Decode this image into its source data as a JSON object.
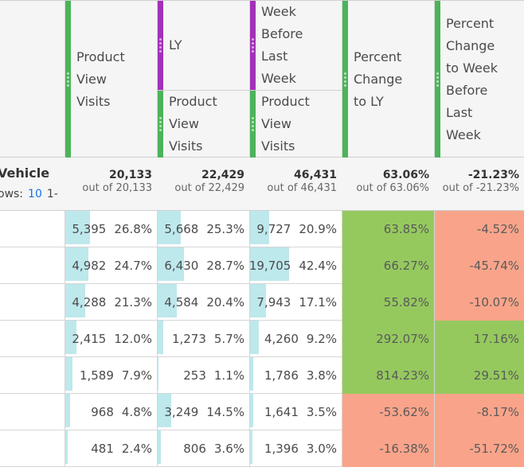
{
  "header": {
    "col1": "Product View Visits",
    "col2_top": "LY",
    "col2_bottom": "Product View Visits",
    "col3_top": "Week Before Last Week",
    "col3_bottom": "Product View Visits",
    "col4": "Percent Change to LY",
    "col5": "Percent Change to Week Before Last Week"
  },
  "dimension": {
    "title": "Vehicle",
    "rows_label": "ows:",
    "rows_value": "10",
    "page": "1-"
  },
  "totals": [
    {
      "total": "20,133",
      "out_of": "out of 20,133"
    },
    {
      "total": "22,429",
      "out_of": "out of 22,429"
    },
    {
      "total": "46,431",
      "out_of": "out of 46,431"
    },
    {
      "total": "63.06%",
      "out_of": "out of 63.06%"
    },
    {
      "total": "-21.23%",
      "out_of": "out of -21.23%"
    }
  ],
  "colors": {
    "positive": "#95c95e",
    "negative": "#f9a48a",
    "bar": "#bde8ec"
  },
  "rows": [
    {
      "c1": "5,395",
      "p1": "26.8%",
      "c2": "5,668",
      "p2": "25.3%",
      "c3": "9,727",
      "p3": "20.9%",
      "ly": "63.85%",
      "wb": "-4.52%"
    },
    {
      "c1": "4,982",
      "p1": "24.7%",
      "c2": "6,430",
      "p2": "28.7%",
      "c3": "19,705",
      "p3": "42.4%",
      "ly": "66.27%",
      "wb": "-45.74%"
    },
    {
      "c1": "4,288",
      "p1": "21.3%",
      "c2": "4,584",
      "p2": "20.4%",
      "c3": "7,943",
      "p3": "17.1%",
      "ly": "55.82%",
      "wb": "-10.07%"
    },
    {
      "c1": "2,415",
      "p1": "12.0%",
      "c2": "1,273",
      "p2": "5.7%",
      "c3": "4,260",
      "p3": "9.2%",
      "ly": "292.07%",
      "wb": "17.16%"
    },
    {
      "c1": "1,589",
      "p1": "7.9%",
      "c2": "253",
      "p2": "1.1%",
      "c3": "1,786",
      "p3": "3.8%",
      "ly": "814.23%",
      "wb": "29.51%"
    },
    {
      "c1": "968",
      "p1": "4.8%",
      "c2": "3,249",
      "p2": "14.5%",
      "c3": "1,641",
      "p3": "3.5%",
      "ly": "-53.62%",
      "wb": "-8.17%"
    },
    {
      "c1": "481",
      "p1": "2.4%",
      "c2": "806",
      "p2": "3.6%",
      "c3": "1,396",
      "p3": "3.0%",
      "ly": "-16.38%",
      "wb": "-51.72%"
    }
  ]
}
